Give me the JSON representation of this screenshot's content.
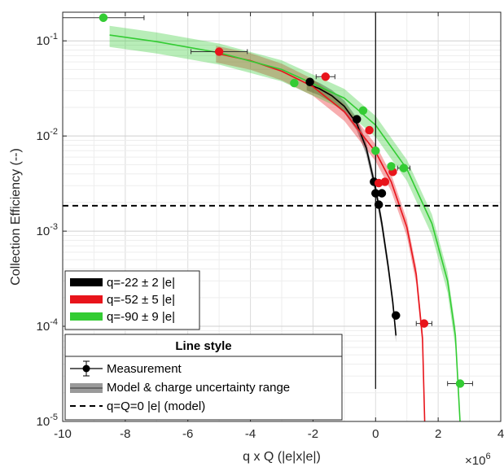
{
  "chart_data": {
    "type": "scatter",
    "title": "",
    "xlabel": "q x Q (|e|x|e|)",
    "ylabel": "Collection Efficiency (--)",
    "x_multiplier": "×10",
    "x_multiplier_exponent": "6",
    "xlim": [
      -10,
      4
    ],
    "ylim": [
      1e-05,
      0.2
    ],
    "yscale": "log",
    "grid": true,
    "x_ticks": [
      -10,
      -8,
      -6,
      -4,
      -2,
      0,
      2,
      4
    ],
    "x_tick_labels": [
      "-10",
      "-8",
      "-6",
      "-4",
      "-2",
      "0",
      "2",
      "4"
    ],
    "y_ticks": [
      1e-05,
      0.0001,
      0.001,
      0.01,
      0.1
    ],
    "y_tick_bases": [
      "10",
      "10",
      "10",
      "10",
      "10"
    ],
    "y_tick_exponents": [
      "-5",
      "-4",
      "-3",
      "-2",
      "-1"
    ],
    "reference_line": {
      "label": "q=Q=0 |e| (model)",
      "y": 0.00185,
      "x": 0
    },
    "series": [
      {
        "name": "q=-22 ± 2 |e|",
        "color": "#000000",
        "model_x": [
          -2.2,
          -1.8,
          -1.4,
          -1.0,
          -0.6,
          -0.3,
          0.0,
          0.2,
          0.4,
          0.55,
          0.65
        ],
        "model_y": [
          0.0355,
          0.0315,
          0.0265,
          0.0205,
          0.0135,
          0.0075,
          0.0028,
          0.0012,
          0.00043,
          0.00018,
          8e-05
        ],
        "band_rel_width": 0.15,
        "points": [
          {
            "x": -2.1,
            "y": 0.037
          },
          {
            "x": -0.6,
            "y": 0.015
          },
          {
            "x": -0.05,
            "y": 0.0033
          },
          {
            "x": 0.0,
            "y": 0.0025
          },
          {
            "x": 0.1,
            "y": 0.0019
          },
          {
            "x": 0.2,
            "y": 0.0025
          },
          {
            "x": 0.65,
            "y": 0.00013
          }
        ]
      },
      {
        "name": "q=-52 ± 5 |e|",
        "color": "#e8141b",
        "model_x": [
          -5.1,
          -4.0,
          -3.0,
          -2.0,
          -1.0,
          0.0,
          0.5,
          1.0,
          1.3,
          1.5,
          1.57
        ],
        "model_y": [
          0.074,
          0.062,
          0.048,
          0.033,
          0.018,
          0.0068,
          0.0033,
          0.0011,
          0.00035,
          7.5e-05,
          1e-05
        ],
        "band_rel_width": 0.2,
        "points": [
          {
            "x": -5.0,
            "y": 0.077,
            "xerr": 0.9
          },
          {
            "x": -1.6,
            "y": 0.042,
            "xerr": 0.3
          },
          {
            "x": -0.2,
            "y": 0.0115
          },
          {
            "x": 0.1,
            "y": 0.0032
          },
          {
            "x": 0.3,
            "y": 0.0033
          },
          {
            "x": 0.55,
            "y": 0.0042
          },
          {
            "x": 1.55,
            "y": 0.000107,
            "xerr": 0.25
          }
        ]
      },
      {
        "name": "q=-90 ± 9 |e|",
        "color": "#33cc33",
        "model_x": [
          -8.5,
          -7.0,
          -5.0,
          -3.0,
          -1.0,
          0.0,
          1.0,
          1.8,
          2.3,
          2.55,
          2.7
        ],
        "model_y": [
          0.115,
          0.098,
          0.075,
          0.05,
          0.025,
          0.013,
          0.0045,
          0.0012,
          0.0003,
          8e-05,
          1e-05
        ],
        "band_rel_width": 0.25,
        "points": [
          {
            "x": -8.7,
            "y": 0.175,
            "xerr": 1.3
          },
          {
            "x": -2.6,
            "y": 0.036
          },
          {
            "x": -0.4,
            "y": 0.0185
          },
          {
            "x": 0.0,
            "y": 0.007
          },
          {
            "x": 0.5,
            "y": 0.0048
          },
          {
            "x": 0.9,
            "y": 0.0046,
            "xerr": 0.2
          },
          {
            "x": 2.7,
            "y": 2.5e-05,
            "xerr": 0.4
          }
        ]
      }
    ],
    "legend": {
      "placement": "bottom-left",
      "entries": [
        "q=-22 ± 2 |e|",
        "q=-52 ± 5 |e|",
        "q=-90 ± 9 |e|"
      ]
    },
    "line_style_legend": {
      "title": "Line style",
      "entries": [
        "Measurement",
        "Model & charge uncertainty range",
        "q=Q=0 |e| (model)"
      ]
    }
  }
}
